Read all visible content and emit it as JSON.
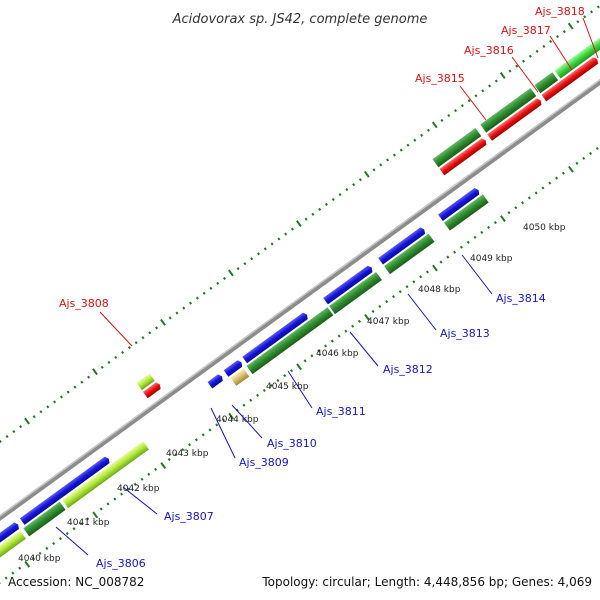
{
  "title": "Acidovorax sp. JS42, complete genome",
  "footer": {
    "accession": "Accession: NC_008782",
    "summary": "Topology: circular; Length: 4,448,856 bp; Genes: 4,069"
  },
  "colors": {
    "forward_cds": "#1515d8",
    "reverse_cds": "#e81010",
    "forward_gene": "#2e8a2e",
    "reverse_gene": "#2e8a2e",
    "light_gene": "#aee63a",
    "backbone": "#8c8c8c",
    "tick": "#1f7a1f",
    "label_forward": "#1515c8",
    "label_reverse": "#e01010"
  },
  "kbp_marks": [
    {
      "label": "4040 kbp"
    },
    {
      "label": "4041 kbp"
    },
    {
      "label": "4042 kbp"
    },
    {
      "label": "4043 kbp"
    },
    {
      "label": "4044 kbp"
    },
    {
      "label": "4045 kbp"
    },
    {
      "label": "4046 kbp"
    },
    {
      "label": "4047 kbp"
    },
    {
      "label": "4048 kbp"
    },
    {
      "label": "4049 kbp"
    },
    {
      "label": "4050 kbp"
    }
  ],
  "genes": [
    {
      "name": "Ajs_3806",
      "strand": "forward"
    },
    {
      "name": "Ajs_3807",
      "strand": "forward"
    },
    {
      "name": "Ajs_3808",
      "strand": "reverse"
    },
    {
      "name": "Ajs_3809",
      "strand": "forward"
    },
    {
      "name": "Ajs_3810",
      "strand": "forward"
    },
    {
      "name": "Ajs_3811",
      "strand": "forward"
    },
    {
      "name": "Ajs_3812",
      "strand": "forward"
    },
    {
      "name": "Ajs_3813",
      "strand": "forward"
    },
    {
      "name": "Ajs_3814",
      "strand": "forward"
    },
    {
      "name": "Ajs_3815",
      "strand": "reverse"
    },
    {
      "name": "Ajs_3816",
      "strand": "reverse"
    },
    {
      "name": "Ajs_3817",
      "strand": "reverse"
    },
    {
      "name": "Ajs_3818",
      "strand": "reverse"
    }
  ]
}
